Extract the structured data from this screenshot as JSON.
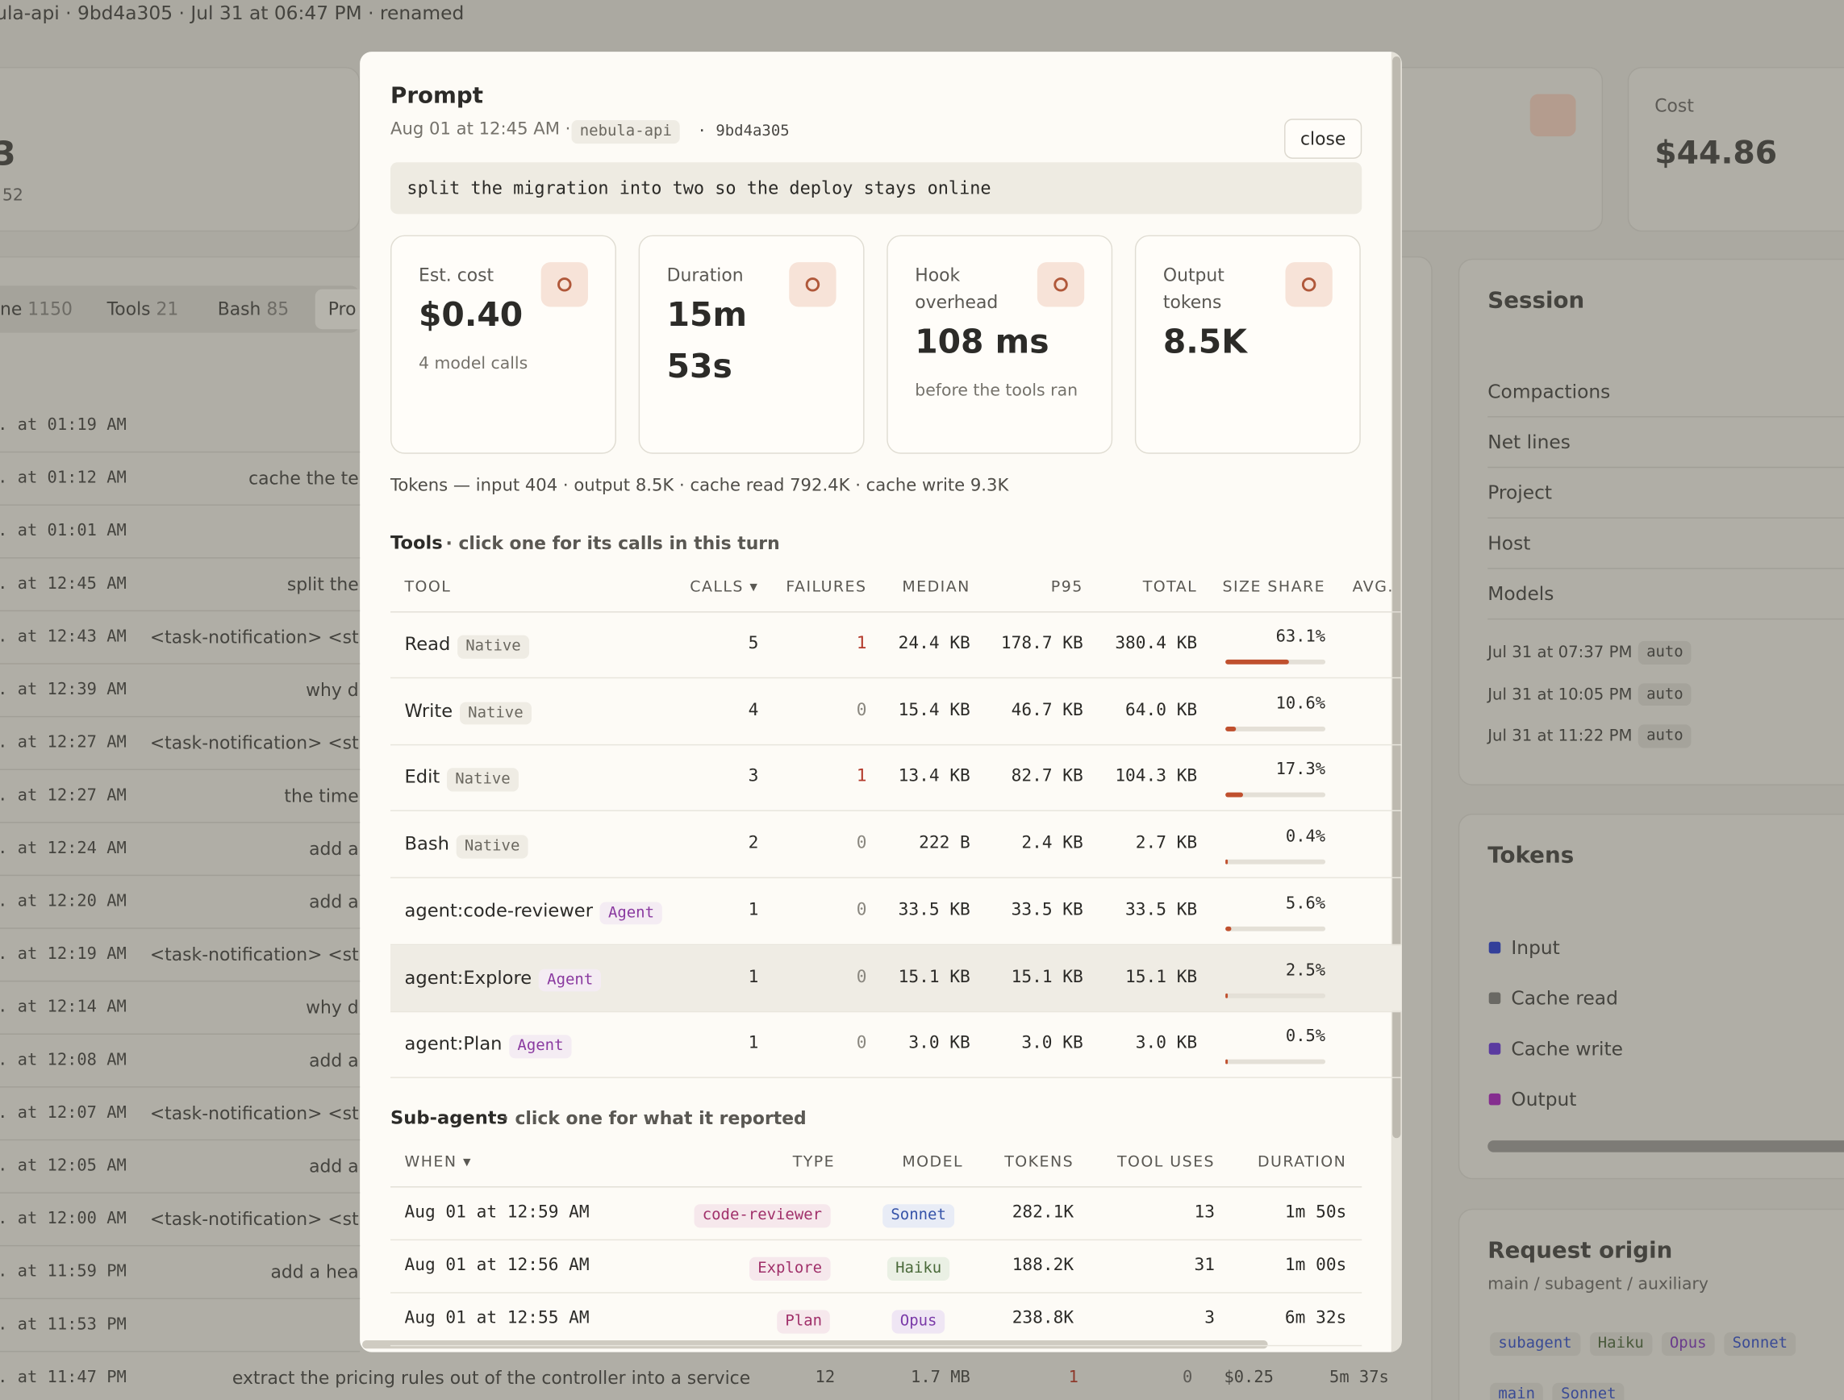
{
  "background": {
    "header": "ula-api · 9bd4a305 · Jul 31 at 06:47 PM · renamed",
    "stat_partial": {
      "value": "3",
      "sub": "52"
    },
    "cost": {
      "label": "Cost",
      "value": "$44.86"
    },
    "tabs": [
      {
        "name": "ne",
        "count": "1150"
      },
      {
        "name": "Tools",
        "count": "21"
      },
      {
        "name": "Bash",
        "count": "85"
      },
      {
        "name": "Pro"
      }
    ],
    "rows": [
      {
        "time": ". at 01:19 AM"
      },
      {
        "time": ". at 01:12 AM",
        "text": "cache the te"
      },
      {
        "time": ". at 01:01 AM"
      },
      {
        "time": ". at 12:45 AM",
        "text": "split the"
      },
      {
        "time": ". at 12:43 AM",
        "text": "<task-notification> <st"
      },
      {
        "time": ". at 12:39 AM",
        "text": "why d"
      },
      {
        "time": ". at 12:27 AM",
        "text": "<task-notification> <st"
      },
      {
        "time": ". at 12:27 AM",
        "text": "the time"
      },
      {
        "time": ". at 12:24 AM",
        "text": "add a"
      },
      {
        "time": ". at 12:20 AM",
        "text": "add a"
      },
      {
        "time": ". at 12:19 AM",
        "text": "<task-notification> <st"
      },
      {
        "time": ". at 12:14 AM",
        "text": "why d"
      },
      {
        "time": ". at 12:08 AM",
        "text": "add a"
      },
      {
        "time": ". at 12:07 AM",
        "text": "<task-notification> <st"
      },
      {
        "time": ". at 12:05 AM",
        "text": "add a"
      },
      {
        "time": ". at 12:00 AM",
        "text": "<task-notification> <st"
      },
      {
        "time": ". at 11:59 PM",
        "text": "add a hea"
      },
      {
        "time": ". at 11:53 PM"
      }
    ],
    "last_row": {
      "time": ". at 11:47 PM",
      "text": "extract the pricing rules out of the controller into a service",
      "calls": 12,
      "size": "1.7 MB",
      "failures": 1,
      "other": 0,
      "cost": "$0.25",
      "duration": "5m 37s"
    },
    "session": {
      "title": "Session",
      "items": [
        "Compactions",
        "Net lines",
        "Project",
        "Host",
        "Models"
      ],
      "models": [
        {
          "when": "Jul 31 at 07:37 PM",
          "tag": "auto"
        },
        {
          "when": "Jul 31 at 10:05 PM",
          "tag": "auto"
        },
        {
          "when": "Jul 31 at 11:22 PM",
          "tag": "auto"
        }
      ]
    },
    "tokens": {
      "title": "Tokens",
      "legend": [
        "Input",
        "Cache read",
        "Cache write",
        "Output"
      ]
    },
    "origin": {
      "title": "Request origin",
      "subtitle": "main / subagent / auxiliary",
      "groups": [
        [
          "subagent",
          "Haiku",
          "Opus",
          "Sonnet"
        ],
        [
          "main",
          "Sonnet"
        ]
      ]
    }
  },
  "modal": {
    "title": "Prompt",
    "when": "Aug 01 at 12:45 AM ·",
    "project": "nebula-api",
    "commit": "· 9bd4a305",
    "close": "close",
    "prompt": "split the migration into two so the deploy stays online",
    "stats": [
      {
        "label": "Est. cost",
        "value": "$0.40",
        "sub": "4 model calls"
      },
      {
        "label": "Duration",
        "value": "15m 53s"
      },
      {
        "label": "Hook overhead",
        "value": "108 ms",
        "sub": "before the tools ran"
      },
      {
        "label": "Output tokens",
        "value": "8.5K"
      }
    ],
    "tokens_line": "Tokens — input 404 · output 8.5K · cache read 792.4K · cache write 9.3K",
    "tools": {
      "title": "Tools",
      "hint": "· click one for its calls in this turn",
      "columns": [
        "TOOL",
        "CALLS ▾",
        "FAILURES",
        "MEDIAN",
        "P95",
        "TOTAL",
        "SIZE SHARE",
        "AVG."
      ],
      "rows": [
        {
          "name": "Read",
          "kind": "Native",
          "calls": 5,
          "failures": 1,
          "median": "24.4 KB",
          "p95": "178.7 KB",
          "total": "380.4 KB",
          "share": 63.1,
          "share_label": "63.1%"
        },
        {
          "name": "Write",
          "kind": "Native",
          "calls": 4,
          "failures": 0,
          "median": "15.4 KB",
          "p95": "46.7 KB",
          "total": "64.0 KB",
          "share": 10.6,
          "share_label": "10.6%"
        },
        {
          "name": "Edit",
          "kind": "Native",
          "calls": 3,
          "failures": 1,
          "median": "13.4 KB",
          "p95": "82.7 KB",
          "total": "104.3 KB",
          "share": 17.3,
          "share_label": "17.3%"
        },
        {
          "name": "Bash",
          "kind": "Native",
          "calls": 2,
          "failures": 0,
          "median": "222 B",
          "p95": "2.4 KB",
          "total": "2.7 KB",
          "share": 0.4,
          "share_label": "0.4%"
        },
        {
          "name": "agent:code-reviewer",
          "kind": "Agent",
          "calls": 1,
          "failures": 0,
          "median": "33.5 KB",
          "p95": "33.5 KB",
          "total": "33.5 KB",
          "share": 5.6,
          "share_label": "5.6%"
        },
        {
          "name": "agent:Explore",
          "kind": "Agent",
          "calls": 1,
          "failures": 0,
          "median": "15.1 KB",
          "p95": "15.1 KB",
          "total": "15.1 KB",
          "share": 2.5,
          "share_label": "2.5%"
        },
        {
          "name": "agent:Plan",
          "kind": "Agent",
          "calls": 1,
          "failures": 0,
          "median": "3.0 KB",
          "p95": "3.0 KB",
          "total": "3.0 KB",
          "share": 0.5,
          "share_label": "0.5%"
        }
      ]
    },
    "subagents": {
      "title": "Sub-agents",
      "hint": "· click one for what it reported",
      "columns": [
        "WHEN ▾",
        "TYPE",
        "MODEL",
        "TOKENS",
        "TOOL USES",
        "DURATION"
      ],
      "rows": [
        {
          "when": "Aug 01 at 12:59 AM",
          "type": "code-reviewer",
          "model": "Sonnet",
          "tokens": "282.1K",
          "tool_uses": 13,
          "duration": "1m 50s"
        },
        {
          "when": "Aug 01 at 12:56 AM",
          "type": "Explore",
          "model": "Haiku",
          "tokens": "188.2K",
          "tool_uses": 31,
          "duration": "1m 00s"
        },
        {
          "when": "Aug 01 at 12:55 AM",
          "type": "Plan",
          "model": "Opus",
          "tokens": "238.8K",
          "tool_uses": 3,
          "duration": "6m 32s"
        }
      ]
    }
  }
}
